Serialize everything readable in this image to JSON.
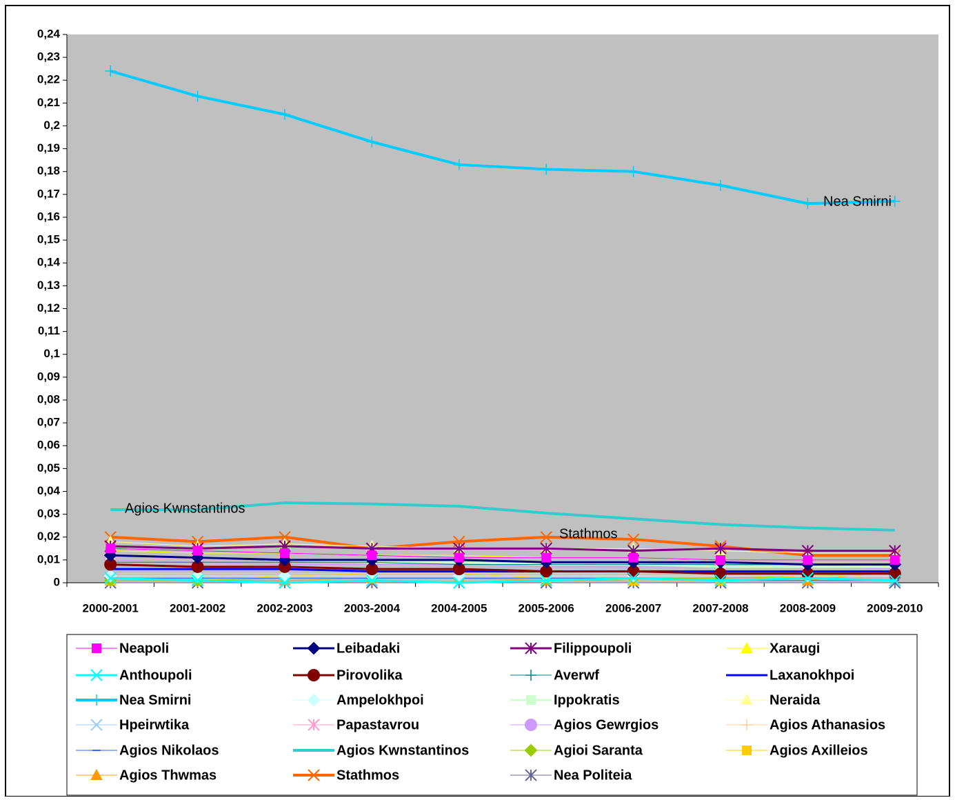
{
  "chart_data": {
    "type": "line",
    "categories": [
      "2000-2001",
      "2001-2002",
      "2002-2003",
      "2003-2004",
      "2004-2005",
      "2005-2006",
      "2006-2007",
      "2007-2008",
      "2008-2009",
      "2009-2010"
    ],
    "ylim": [
      0,
      0.24
    ],
    "yticks": [
      0,
      {
        "value": 0.01,
        "label": "0,01"
      },
      {
        "value": 0.02,
        "label": "0,02"
      },
      {
        "value": 0.03,
        "label": "0,03"
      },
      {
        "value": 0.04,
        "label": "0,04"
      },
      {
        "value": 0.05,
        "label": "0,05"
      },
      {
        "value": 0.06,
        "label": "0,06"
      },
      {
        "value": 0.07,
        "label": "0,07"
      },
      {
        "value": 0.08,
        "label": "0,08"
      },
      {
        "value": 0.09,
        "label": "0,09"
      },
      {
        "value": 0.1,
        "label": "0,1"
      },
      {
        "value": 0.11,
        "label": "0,11"
      },
      {
        "value": 0.12,
        "label": "0,12"
      },
      {
        "value": 0.13,
        "label": "0,13"
      },
      {
        "value": 0.14,
        "label": "0,14"
      },
      {
        "value": 0.15,
        "label": "0,15"
      },
      {
        "value": 0.16,
        "label": "0,16"
      },
      {
        "value": 0.17,
        "label": "0,17"
      },
      {
        "value": 0.18,
        "label": "0,18"
      },
      {
        "value": 0.19,
        "label": "0,19"
      },
      {
        "value": 0.2,
        "label": "0,2"
      },
      {
        "value": 0.21,
        "label": "0,21"
      },
      {
        "value": 0.22,
        "label": "0,22"
      },
      {
        "value": 0.23,
        "label": "0,23"
      },
      {
        "value": 0.24,
        "label": "0,24"
      }
    ],
    "grid": false,
    "legend": "bottom",
    "annotations": [
      "Agios Kwnstantinos",
      "Stathmos",
      "Nea Smirni"
    ],
    "series": [
      {
        "name": "Neapoli",
        "color": "#ff00ff",
        "marker": "square",
        "width": 1,
        "values": [
          0.015,
          0.014,
          0.013,
          0.012,
          0.011,
          0.011,
          0.011,
          0.01,
          0.01,
          0.01
        ]
      },
      {
        "name": "Leibadaki",
        "color": "#000080",
        "marker": "diamond",
        "width": 3,
        "values": [
          0.012,
          0.011,
          0.01,
          0.01,
          0.01,
          0.009,
          0.009,
          0.009,
          0.008,
          0.008
        ]
      },
      {
        "name": "Filippoupoli",
        "color": "#800080",
        "marker": "asterisk",
        "width": 3,
        "values": [
          0.016,
          0.015,
          0.016,
          0.015,
          0.015,
          0.015,
          0.014,
          0.015,
          0.014,
          0.014
        ]
      },
      {
        "name": "Xaraugi",
        "color": "#ffff00",
        "marker": "triangle",
        "width": 1,
        "values": [
          0.014,
          0.013,
          0.013,
          0.012,
          0.012,
          0.011,
          0.011,
          0.01,
          0.01,
          0.01
        ]
      },
      {
        "name": "Anthoupoli",
        "color": "#00ffff",
        "marker": "x",
        "width": 3,
        "values": [
          0.002,
          0.001,
          0,
          0.001,
          0,
          0.001,
          0.002,
          0.001,
          0.002,
          0.001
        ]
      },
      {
        "name": "Pirovolika",
        "color": "#800000",
        "marker": "circle",
        "width": 3,
        "values": [
          0.008,
          0.007,
          0.007,
          0.006,
          0.006,
          0.005,
          0.005,
          0.004,
          0.004,
          0.004
        ]
      },
      {
        "name": "Averwf",
        "color": "#008080",
        "marker": "plus",
        "width": 1,
        "values": [
          0.009,
          0.009,
          0.009,
          0.009,
          0.008,
          0.008,
          0.008,
          0.008,
          0.008,
          0.008
        ]
      },
      {
        "name": "Laxanokhpoi",
        "color": "#0000ff",
        "marker": "none",
        "width": 3,
        "values": [
          0.006,
          0.006,
          0.006,
          0.005,
          0.005,
          0.005,
          0.005,
          0.005,
          0.005,
          0.005
        ]
      },
      {
        "name": "Nea Smirni",
        "color": "#00ccff",
        "marker": "plus",
        "width": 4,
        "values": [
          0.224,
          0.213,
          0.205,
          0.193,
          0.183,
          0.181,
          0.18,
          0.174,
          0.166,
          0.167
        ]
      },
      {
        "name": "Ampelokhpoi",
        "color": "#ccffff",
        "marker": "diamond",
        "width": 1,
        "values": [
          0.003,
          0.003,
          0.003,
          0.003,
          0.003,
          0.003,
          0.003,
          0.003,
          0.003,
          0.003
        ]
      },
      {
        "name": "Ippokratis",
        "color": "#ccffcc",
        "marker": "square",
        "width": 3,
        "values": [
          0.012,
          0.011,
          0.01,
          0.009,
          0.009,
          0.008,
          0.008,
          0.007,
          0.007,
          0.007
        ]
      },
      {
        "name": "Neraida",
        "color": "#ffff99",
        "marker": "triangle",
        "width": 1,
        "values": [
          0.018,
          0.016,
          0.017,
          0.016,
          0.015,
          0.015,
          0.015,
          0.014,
          0.013,
          0.013
        ]
      },
      {
        "name": "Hpeirwtika",
        "color": "#99ccff",
        "marker": "x",
        "width": 1,
        "values": [
          0.007,
          0.006,
          0.006,
          0.006,
          0.006,
          0.006,
          0.005,
          0.005,
          0.005,
          0.005
        ]
      },
      {
        "name": "Papastavrou",
        "color": "#ff99cc",
        "marker": "asterisk",
        "width": 1,
        "values": [
          0.011,
          0.01,
          0.01,
          0.009,
          0.009,
          0.009,
          0.008,
          0.008,
          0.008,
          0.008
        ]
      },
      {
        "name": "Agios Gewrgios",
        "color": "#cc99ff",
        "marker": "circle",
        "width": 1,
        "values": [
          0.01,
          0.009,
          0.008,
          0.008,
          0.008,
          0.007,
          0.007,
          0.007,
          0.007,
          0.006
        ]
      },
      {
        "name": "Agios Athanasios",
        "color": "#ffcc99",
        "marker": "plus",
        "width": 1,
        "values": [
          0.004,
          0.004,
          0.004,
          0.004,
          0.004,
          0.004,
          0.004,
          0.004,
          0.004,
          0.004
        ]
      },
      {
        "name": "Agios Nikolaos",
        "color": "#3366ff",
        "marker": "dash",
        "width": 1,
        "values": [
          0.002,
          0.002,
          0.002,
          0.002,
          0.002,
          0.002,
          0.002,
          0.001,
          0.001,
          0.001
        ]
      },
      {
        "name": "Agios Kwnstantinos",
        "color": "#33cccc",
        "marker": "none",
        "width": 4,
        "values": [
          0.032,
          0.032,
          0.035,
          0.0345,
          0.0335,
          0.0305,
          0.028,
          0.0255,
          0.024,
          0.023
        ]
      },
      {
        "name": "Agioi Saranta",
        "color": "#99cc00",
        "marker": "diamond",
        "width": 1,
        "values": [
          0.001,
          0.001,
          0.002,
          0.002,
          0.002,
          0.002,
          0.002,
          0.002,
          0.003,
          0.004
        ]
      },
      {
        "name": "Agios Axilleios",
        "color": "#ffcc00",
        "marker": "square",
        "width": 1,
        "values": [
          0.001,
          0.001,
          0.003,
          0.004,
          0.004,
          0.002,
          0.001,
          0.001,
          0.003,
          0.004
        ]
      },
      {
        "name": "Agios Thwmas",
        "color": "#ff9900",
        "marker": "triangle",
        "width": 1,
        "values": [
          0.001,
          0.001,
          0.001,
          0.002,
          0.002,
          0.001,
          0.001,
          0.001,
          0.001,
          0.005
        ]
      },
      {
        "name": "Stathmos",
        "color": "#ff6600",
        "marker": "x",
        "width": 4,
        "values": [
          0.02,
          0.018,
          0.02,
          0.015,
          0.018,
          0.02,
          0.019,
          0.016,
          0.012,
          0.012
        ]
      },
      {
        "name": "Nea Politeia",
        "color": "#666699",
        "marker": "asterisk",
        "width": 1,
        "values": [
          0,
          0,
          0,
          0,
          0,
          0,
          0,
          0,
          0,
          0
        ]
      }
    ]
  }
}
